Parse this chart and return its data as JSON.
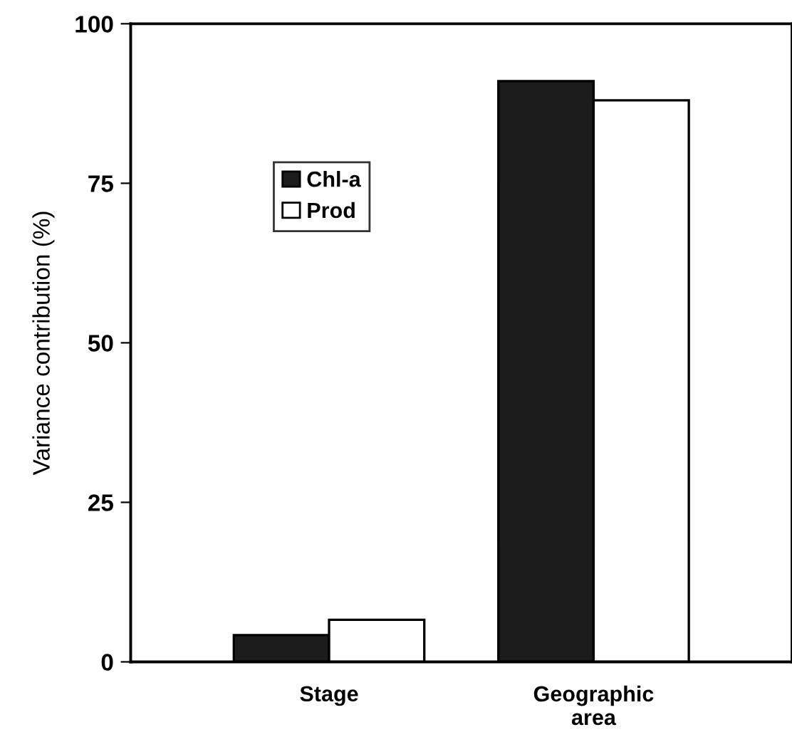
{
  "chart_data": {
    "type": "bar",
    "ylabel": "Variance contribution (%)",
    "categories": [
      "Stage",
      "Geographic\narea"
    ],
    "series": [
      {
        "name": "Chl-a",
        "color": "#1c1c1c",
        "values": [
          4.2,
          91
        ]
      },
      {
        "name": "Prod",
        "color": "#ffffff",
        "values": [
          6.6,
          88
        ]
      }
    ],
    "ylim": [
      0,
      100
    ],
    "yticks": [
      0,
      25,
      50,
      75,
      100
    ],
    "grid": false,
    "legend": "top left"
  }
}
